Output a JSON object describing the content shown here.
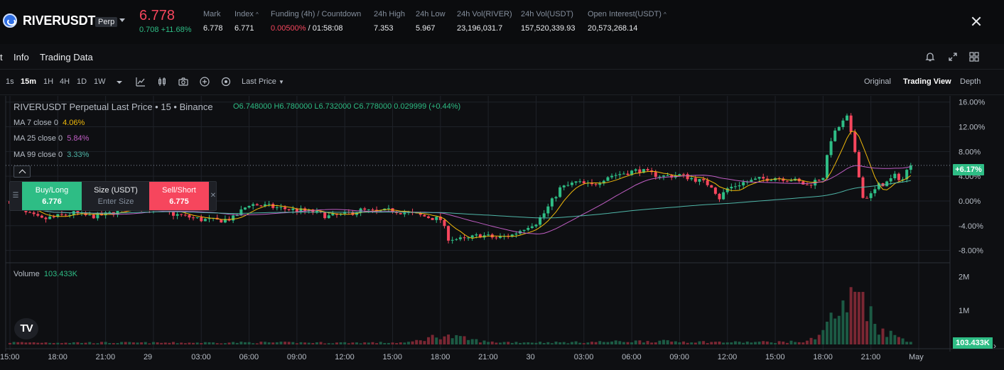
{
  "ticker": {
    "symbol": "RIVERUSDT",
    "badge": "Perp",
    "last_price": "6.778",
    "change": "0.708 +11.68%",
    "stats": [
      {
        "label": "Mark",
        "value": "6.778"
      },
      {
        "label": "Index",
        "value": "6.771"
      },
      {
        "label": "Funding (4h) / Countdown",
        "value_red": "0.00500%",
        "value": " / 01:58:08"
      },
      {
        "label": "24h High",
        "value": "7.353"
      },
      {
        "label": "24h Low",
        "value": "5.967"
      },
      {
        "label": "24h Vol(RIVER)",
        "value": "23,196,031.7"
      },
      {
        "label": "24h Vol(USDT)",
        "value": "157,520,339.93"
      },
      {
        "label": "Open Interest(USDT)",
        "value": "20,573,268.14"
      }
    ]
  },
  "tabs": [
    "t",
    "Info",
    "Trading Data"
  ],
  "toolbar": {
    "intervals": [
      "1s",
      "15m",
      "1H",
      "4H",
      "1D",
      "1W"
    ],
    "active_interval": "15m",
    "price_source": "Last Price",
    "views": [
      "Original",
      "Trading View",
      "Depth"
    ],
    "active_view": "Trading View"
  },
  "legend": {
    "title": "RIVERUSDT Perpetual Last Price • 15 • Binance",
    "ohlc": "O6.748000  H6.780000  L6.732000  C6.778000  0.029999 (+0.44%)",
    "ma7_label": "MA 7 close 0",
    "ma7_value": "4.06%",
    "ma25_label": "MA 25 close 0",
    "ma25_value": "5.84%",
    "ma99_label": "MA 99 close 0",
    "ma99_value": "3.33%",
    "volume_label": "Volume",
    "volume_value": "103.433K"
  },
  "trade": {
    "buy_label": "Buy/Long",
    "buy_price": "6.776",
    "size_label": "Size (USDT)",
    "size_placeholder": "Enter Size",
    "sell_label": "Sell/Short",
    "sell_price": "6.775"
  },
  "current_tag": "+6.17%",
  "volume_tag": "103.433K",
  "colors": {
    "up": "#2ebd85",
    "down": "#f6465d",
    "ma7": "#f0b90b",
    "ma25": "#c05ec4",
    "ma99": "#4fb6a8"
  },
  "chart_data": {
    "type": "candlestick",
    "y_axis_labels": [
      "16.00%",
      "12.00%",
      "8.00%",
      "4.00%",
      "0.00%",
      "-4.00%",
      "-8.00%"
    ],
    "y_axis_values": [
      16,
      12,
      8,
      4,
      0,
      -4,
      -8
    ],
    "volume_axis_labels": [
      "2M",
      "1M"
    ],
    "volume_axis_values": [
      2000000,
      1000000
    ],
    "x_axis_labels": [
      "15:00",
      "18:00",
      "21:00",
      "29",
      "03:00",
      "06:00",
      "09:00",
      "12:00",
      "15:00",
      "18:00",
      "21:00",
      "30",
      "03:00",
      "06:00",
      "09:00",
      "12:00",
      "15:00",
      "18:00",
      "21:00",
      "May"
    ],
    "x_axis_units": [
      0,
      12,
      24,
      36,
      48,
      60,
      72,
      84,
      96,
      108,
      120,
      132,
      144,
      156,
      168,
      180,
      192,
      204,
      216,
      228
    ],
    "close_path": [
      [
        0,
        0
      ],
      [
        4,
        -2
      ],
      [
        8,
        -3
      ],
      [
        12,
        -2.5
      ],
      [
        16,
        -2
      ],
      [
        20,
        -2.5
      ],
      [
        24,
        -2.2
      ],
      [
        28,
        -1.5
      ],
      [
        32,
        -0.8
      ],
      [
        36,
        -1.2
      ],
      [
        40,
        -2
      ],
      [
        44,
        -2.5
      ],
      [
        48,
        -3
      ],
      [
        52,
        -3.2
      ],
      [
        56,
        -2.8
      ],
      [
        60,
        -0.5
      ],
      [
        64,
        -0.8
      ],
      [
        68,
        -1.2
      ],
      [
        72,
        -1.5
      ],
      [
        76,
        -1.8
      ],
      [
        80,
        -2.5
      ],
      [
        84,
        -2.2
      ],
      [
        88,
        -1.5
      ],
      [
        92,
        -1.8
      ],
      [
        96,
        -1.5
      ],
      [
        100,
        -2
      ],
      [
        104,
        -2.5
      ],
      [
        108,
        -3
      ],
      [
        110,
        -6
      ],
      [
        114,
        -6.3
      ],
      [
        118,
        -5.5
      ],
      [
        122,
        -6
      ],
      [
        126,
        -5.5
      ],
      [
        130,
        -4
      ],
      [
        132,
        -3.5
      ],
      [
        134,
        -2
      ],
      [
        136,
        0
      ],
      [
        138,
        2
      ],
      [
        142,
        3
      ],
      [
        146,
        2.5
      ],
      [
        150,
        4
      ],
      [
        154,
        4.5
      ],
      [
        158,
        5
      ],
      [
        160,
        4.5
      ],
      [
        164,
        4
      ],
      [
        168,
        4.2
      ],
      [
        172,
        3.5
      ],
      [
        176,
        2.5
      ],
      [
        178,
        0.5
      ],
      [
        180,
        2
      ],
      [
        184,
        3
      ],
      [
        188,
        3.5
      ],
      [
        192,
        3.8
      ],
      [
        196,
        3.5
      ],
      [
        200,
        2.5
      ],
      [
        204,
        4
      ],
      [
        206,
        10
      ],
      [
        208,
        12
      ],
      [
        210,
        13.5
      ],
      [
        212,
        8
      ],
      [
        214,
        0.5
      ],
      [
        216,
        1
      ],
      [
        218,
        2.5
      ],
      [
        220,
        3
      ],
      [
        222,
        4
      ],
      [
        224,
        3.5
      ],
      [
        226,
        6.17
      ]
    ],
    "volume_path": [
      [
        0,
        60000
      ],
      [
        20,
        55000
      ],
      [
        40,
        50000
      ],
      [
        60,
        60000
      ],
      [
        80,
        52000
      ],
      [
        100,
        55000
      ],
      [
        108,
        270000
      ],
      [
        120,
        70000
      ],
      [
        140,
        60000
      ],
      [
        160,
        100000
      ],
      [
        180,
        65000
      ],
      [
        200,
        80000
      ],
      [
        204,
        420000
      ],
      [
        206,
        780000
      ],
      [
        208,
        920000
      ],
      [
        210,
        1100000
      ],
      [
        212,
        1500000
      ],
      [
        214,
        1550000
      ],
      [
        216,
        850000
      ],
      [
        218,
        500000
      ],
      [
        222,
        250000
      ],
      [
        226,
        103433
      ]
    ]
  }
}
